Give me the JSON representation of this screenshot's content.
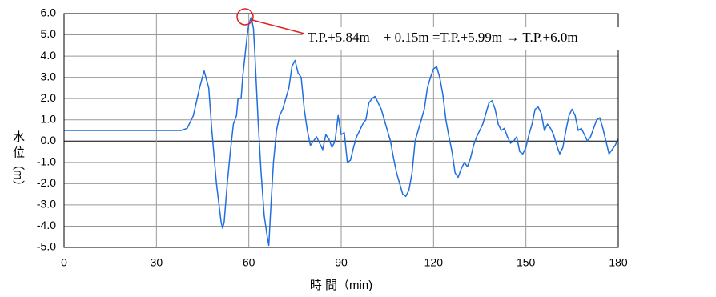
{
  "chart_data": {
    "type": "line",
    "annotation": "T.P.+5.84m　+ 0.15m =T.P.+5.99m → T.P.+6.0m",
    "x_label": "時 間（min)",
    "y_label": "水 位（m）",
    "color": "#1f6fe0",
    "grid": true,
    "xlim": [
      0,
      180
    ],
    "xticks": [
      0,
      30,
      60,
      90,
      120,
      150,
      180
    ],
    "ylim": [
      -5,
      6
    ],
    "yticks": [
      {
        "value": 6,
        "label": "6.0"
      },
      {
        "value": 5,
        "label": "5.0"
      },
      {
        "value": 4,
        "label": "4.0"
      },
      {
        "value": 3,
        "label": "3.0"
      },
      {
        "value": 2,
        "label": "2.0"
      },
      {
        "value": 1,
        "label": "1.0"
      },
      {
        "value": 0,
        "label": "0.0"
      },
      {
        "value": -1,
        "label": "-1.0"
      },
      {
        "value": -2,
        "label": "-2.0"
      },
      {
        "value": -3,
        "label": "-3.0"
      },
      {
        "value": -4,
        "label": "-4.0"
      },
      {
        "value": -5,
        "label": "-5.0"
      }
    ],
    "x": [
      0,
      38,
      40,
      42,
      44,
      45.5,
      47,
      48,
      49.5,
      51,
      51.5,
      52,
      53,
      54,
      55,
      56,
      56.5,
      57.5,
      58,
      59.5,
      60,
      60.8,
      61.5,
      62,
      63,
      64,
      65,
      66,
      66.5,
      67,
      68,
      69,
      70,
      71,
      72,
      73,
      74,
      75,
      76,
      77,
      78,
      79,
      80,
      82,
      84,
      85,
      86,
      87,
      88,
      89,
      90,
      91,
      92,
      93,
      94,
      95,
      96,
      97,
      98,
      99,
      100,
      101,
      103,
      104,
      105,
      106,
      107,
      108,
      109,
      110,
      111,
      112,
      113,
      114,
      115,
      116,
      117,
      118,
      119,
      120,
      121,
      122,
      123,
      124,
      125,
      126,
      127,
      128,
      129,
      130,
      131,
      132,
      133,
      134,
      135,
      136,
      137,
      138,
      139,
      140,
      141,
      142,
      143,
      144,
      145,
      146,
      147,
      148,
      149,
      150,
      151,
      152,
      153,
      154,
      155,
      156,
      157,
      158,
      159,
      160,
      161,
      162,
      163,
      164,
      165,
      166,
      167,
      168,
      169,
      170,
      171,
      172,
      173,
      174,
      175,
      176,
      177,
      178,
      179,
      180
    ],
    "values": [
      0.5,
      0.5,
      0.6,
      1.2,
      2.5,
      3.3,
      2.5,
      0.5,
      -2,
      -3.8,
      -4.1,
      -3.8,
      -2,
      -0.5,
      0.8,
      1.2,
      2.0,
      2.0,
      3.0,
      5.0,
      5.5,
      5.84,
      5.3,
      4.0,
      1.0,
      -1.5,
      -3.5,
      -4.5,
      -4.9,
      -3.5,
      -1.0,
      0.5,
      1.2,
      1.5,
      2.0,
      2.5,
      3.5,
      3.8,
      3.2,
      3.0,
      1.5,
      0.5,
      -0.2,
      0.2,
      -0.4,
      0.3,
      0.1,
      -0.3,
      0.0,
      1.2,
      0.3,
      0.4,
      -1.0,
      -0.9,
      -0.3,
      0.2,
      0.5,
      0.8,
      1.0,
      1.8,
      2.0,
      2.1,
      1.5,
      1.0,
      0.5,
      0.0,
      -0.8,
      -1.5,
      -2.0,
      -2.5,
      -2.6,
      -2.3,
      -1.5,
      0.0,
      0.5,
      1.0,
      1.5,
      2.5,
      3.0,
      3.4,
      3.5,
      3.0,
      2.2,
      1.0,
      0.2,
      -0.5,
      -1.5,
      -1.7,
      -1.3,
      -1.0,
      -1.2,
      -0.8,
      -0.2,
      0.2,
      0.5,
      0.8,
      1.3,
      1.8,
      1.9,
      1.5,
      0.8,
      0.5,
      0.6,
      0.2,
      -0.1,
      0.0,
      0.2,
      -0.5,
      -0.6,
      -0.3,
      0.3,
      0.8,
      1.5,
      1.6,
      1.3,
      0.5,
      0.8,
      0.6,
      0.3,
      -0.2,
      -0.6,
      -0.3,
      0.5,
      1.2,
      1.5,
      1.2,
      0.5,
      0.6,
      0.3,
      0.0,
      0.2,
      0.6,
      1.0,
      1.1,
      0.6,
      0.0,
      -0.6,
      -0.4,
      -0.2,
      0.1
    ]
  }
}
